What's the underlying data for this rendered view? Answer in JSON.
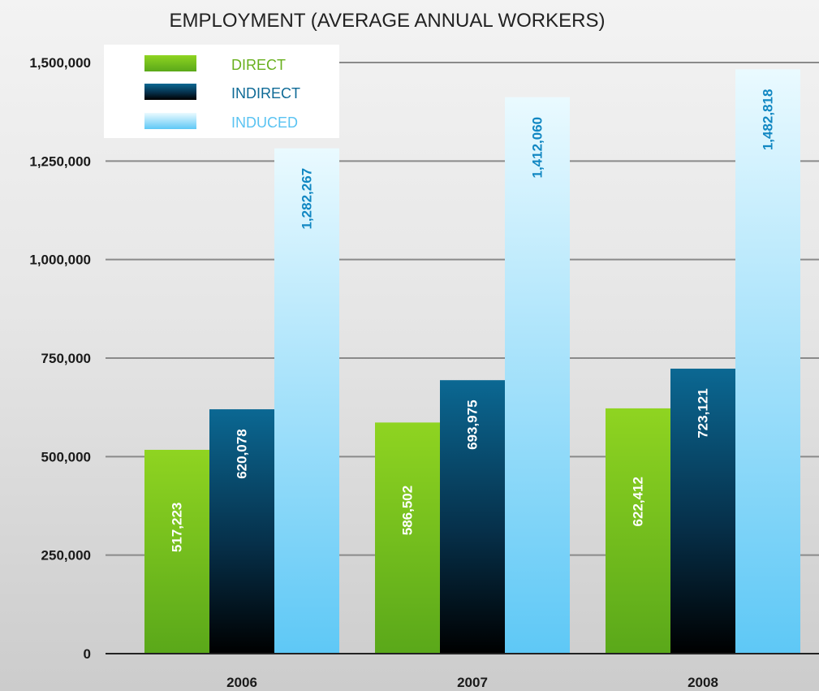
{
  "chart_data": {
    "type": "bar",
    "title": "EMPLOYMENT (AVERAGE ANNUAL WORKERS)",
    "categories": [
      "2006",
      "2007",
      "2008"
    ],
    "series": [
      {
        "name": "DIRECT",
        "values": [
          517223,
          586502,
          622412
        ],
        "color": "#7cc51f",
        "value_labels": [
          "517,223",
          "586,502",
          "622,412"
        ]
      },
      {
        "name": "INDIRECT",
        "values": [
          620078,
          693975,
          723121
        ],
        "color": "#0b5f86",
        "value_labels": [
          "620,078",
          "693,975",
          "723,121"
        ]
      },
      {
        "name": "INDUCED",
        "values": [
          1282267,
          1412060,
          1482818
        ],
        "color": "#aee6fb",
        "value_labels": [
          "1,282,267",
          "1,412,060",
          "1,482,818"
        ]
      }
    ],
    "ylim": [
      0,
      1500000
    ],
    "yticks": [
      0,
      250000,
      500000,
      750000,
      1000000,
      1250000,
      1500000
    ],
    "ytick_labels": [
      "0",
      "250,000",
      "500,000",
      "750,000",
      "1,000,000",
      "1,250,000",
      "1,500,000"
    ],
    "grid": true,
    "legend_position": "top-left",
    "data_label_colors": [
      "#ffffff",
      "#ffffff",
      "#1187c2"
    ]
  }
}
